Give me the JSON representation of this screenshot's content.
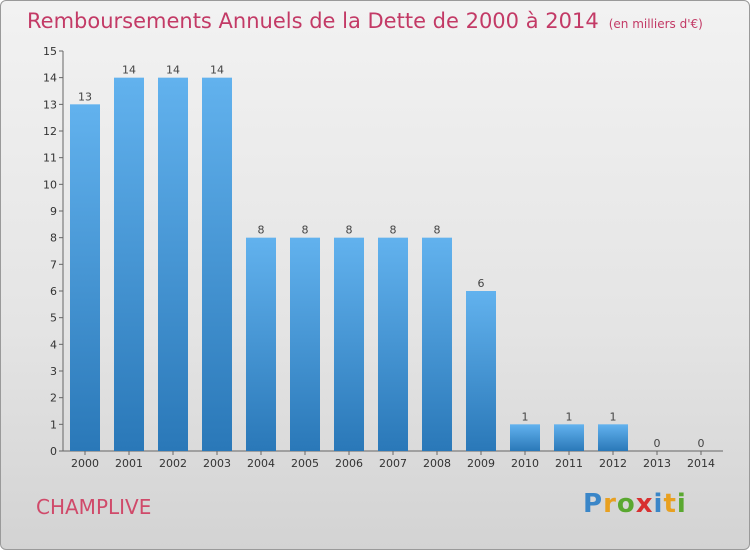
{
  "header": {
    "title": "Remboursements Annuels de la Dette de 2000 à 2014",
    "unit": "(en milliers d'€)"
  },
  "commune": "CHAMPLIVE",
  "logo": {
    "letters": [
      "P",
      "r",
      "o",
      "x",
      "i",
      "t",
      "i"
    ],
    "colors": [
      "#3a86c8",
      "#e8a020",
      "#5aa830",
      "#d83030",
      "#3a86c8",
      "#e8a020",
      "#5aa830"
    ]
  },
  "colors": {
    "bar_top": "#62b2ee",
    "bar_bottom": "#2a78b8",
    "title": "#c33a66"
  },
  "chart_data": {
    "type": "bar",
    "title": "Remboursements Annuels de la Dette de 2000 à 2014",
    "subtitle": "(en milliers d'€)",
    "categories": [
      "2000",
      "2001",
      "2002",
      "2003",
      "2004",
      "2005",
      "2006",
      "2007",
      "2008",
      "2009",
      "2010",
      "2011",
      "2012",
      "2013",
      "2014"
    ],
    "values": [
      13,
      14,
      14,
      14,
      8,
      8,
      8,
      8,
      8,
      6,
      1,
      1,
      1,
      0,
      0
    ],
    "value_labels": [
      "13",
      "14",
      "14",
      "14",
      "8",
      "8",
      "8",
      "8",
      "8",
      "6",
      "1",
      "1",
      "1",
      "0",
      "0"
    ],
    "y_ticks": [
      "0",
      "1",
      "2",
      "3",
      "4",
      "5",
      "6",
      "7",
      "8",
      "9",
      "10",
      "11",
      "12",
      "13",
      "14",
      "15"
    ],
    "ylim": [
      0,
      15
    ],
    "grid": false,
    "legend": "none"
  }
}
